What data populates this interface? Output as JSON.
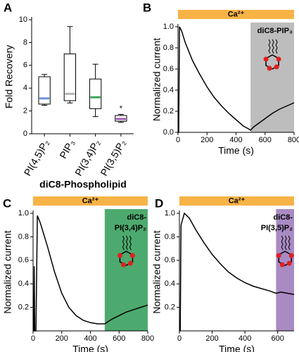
{
  "chart_data": [
    {
      "type": "box",
      "panel_label": "A",
      "ylabel": "Fold Recovery",
      "xlabel": "diC8-Phospholipid",
      "categories": [
        "PI(4,5)P₂",
        "PIP₃",
        "PI(3,4)P₂",
        "PI(3,5)P₂"
      ],
      "boxes": [
        {
          "min": 2.5,
          "q1": 2.6,
          "median": 3.1,
          "q3": 5.0,
          "max": 5.2,
          "color": "#6f93d8"
        },
        {
          "min": 2.7,
          "q1": 2.9,
          "median": 3.5,
          "q3": 7.0,
          "max": 9.4,
          "color": "#b4b4b4"
        },
        {
          "min": 1.5,
          "q1": 2.2,
          "median": 3.2,
          "q3": 4.8,
          "max": 6.1,
          "color": "#3aa35a"
        },
        {
          "min": 1.0,
          "q1": 1.1,
          "median": 1.3,
          "q3": 1.6,
          "max": 1.7,
          "color": "#a35fb5",
          "label": "*"
        }
      ],
      "ylim": [
        0,
        10
      ],
      "yticks": [
        0,
        2,
        4,
        6,
        8,
        10
      ]
    },
    {
      "type": "line",
      "panel_label": "B",
      "ylabel": "Normalized current",
      "xlabel": "Time (s)",
      "stimulus": {
        "label": "Ca²⁺",
        "color": "#f7b346"
      },
      "highlight": {
        "start": 500,
        "end": 800,
        "color": "#bdbdbd",
        "label": [
          "diC8-PIP₃"
        ]
      },
      "x": [
        0,
        5,
        10,
        25,
        50,
        100,
        150,
        200,
        250,
        300,
        350,
        400,
        450,
        490,
        500,
        520,
        560,
        600,
        650,
        700,
        750,
        800
      ],
      "values": [
        0,
        0,
        1.0,
        0.96,
        0.85,
        0.68,
        0.55,
        0.43,
        0.33,
        0.25,
        0.18,
        0.12,
        0.06,
        0.03,
        0.02,
        0.05,
        0.09,
        0.13,
        0.18,
        0.22,
        0.25,
        0.28
      ],
      "xlim": [
        0,
        800
      ],
      "xticks": [
        0,
        200,
        400,
        600,
        800
      ],
      "ylim": [
        0,
        1
      ],
      "yticks": [
        {
          "value": 0,
          "label": "0.0"
        },
        0.2,
        0.4,
        0.6,
        0.8,
        {
          "value": 1,
          "label": "1.0"
        }
      ]
    },
    {
      "type": "line",
      "panel_label": "C",
      "ylabel": "Normalized current",
      "xlabel": "Time (s)",
      "stimulus": {
        "label": "Ca²⁺",
        "color": "#f7b346"
      },
      "highlight": {
        "start": 500,
        "end": 800,
        "color": "#4daa6e",
        "label": [
          "diC8-",
          "PI(3,4)P₂"
        ]
      },
      "x": [
        0,
        5,
        8,
        12,
        20,
        30,
        50,
        100,
        150,
        200,
        250,
        300,
        350,
        400,
        450,
        500,
        550,
        600,
        650,
        700,
        750,
        800
      ],
      "values": [
        0,
        0,
        0.55,
        0,
        0,
        0.98,
        0.92,
        0.72,
        0.5,
        0.32,
        0.2,
        0.13,
        0.09,
        0.07,
        0.06,
        0.06,
        0.1,
        0.13,
        0.16,
        0.18,
        0.2,
        0.22
      ],
      "xlim": [
        0,
        800
      ],
      "xticks": [
        0,
        200,
        400,
        600,
        800
      ],
      "ylim": [
        0,
        1
      ],
      "yticks": [
        0.2,
        0.4,
        0.6,
        0.8,
        {
          "value": 1,
          "label": "1.0"
        }
      ]
    },
    {
      "type": "line",
      "panel_label": "D",
      "ylabel": "Normalized current",
      "xlabel": "Time (s)",
      "stimulus": {
        "label": "Ca²⁺",
        "color": "#f7b346"
      },
      "highlight": {
        "start": 590,
        "end": 700,
        "color": "#a98bc4",
        "label": [
          "diC8-",
          "PI(3,5)P₂"
        ]
      },
      "x": [
        0,
        5,
        10,
        30,
        60,
        100,
        150,
        200,
        250,
        300,
        350,
        400,
        450,
        500,
        550,
        590,
        620,
        660,
        700
      ],
      "values": [
        0,
        0,
        0.9,
        1.0,
        0.96,
        0.86,
        0.75,
        0.65,
        0.57,
        0.5,
        0.45,
        0.41,
        0.38,
        0.36,
        0.34,
        0.32,
        0.33,
        0.32,
        0.31
      ],
      "xlim": [
        0,
        700
      ],
      "xticks": [
        0,
        200,
        400,
        600
      ],
      "ylim": [
        0,
        1
      ],
      "yticks": [
        0.2,
        0.4,
        0.6,
        0.8,
        {
          "value": 1,
          "label": "1.0"
        }
      ]
    }
  ]
}
